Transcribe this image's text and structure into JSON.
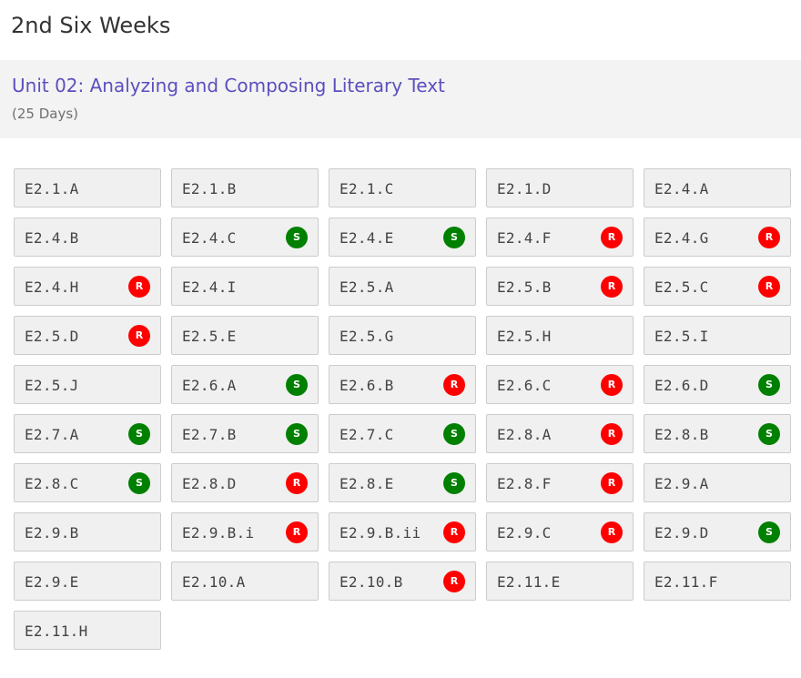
{
  "page": {
    "title": "2nd Six Weeks"
  },
  "unit": {
    "title": "Unit 02: Analyzing and Composing Literary Text",
    "days": "(25 Days)"
  },
  "colors": {
    "supporting": "#008000",
    "readiness": "#ff0000",
    "unit_title": "#5b4fbe"
  },
  "standards": [
    {
      "code": "E2.1.A",
      "badge": ""
    },
    {
      "code": "E2.1.B",
      "badge": ""
    },
    {
      "code": "E2.1.C",
      "badge": ""
    },
    {
      "code": "E2.1.D",
      "badge": ""
    },
    {
      "code": "E2.4.A",
      "badge": ""
    },
    {
      "code": "E2.4.B",
      "badge": ""
    },
    {
      "code": "E2.4.C",
      "badge": "S"
    },
    {
      "code": "E2.4.E",
      "badge": "S"
    },
    {
      "code": "E2.4.F",
      "badge": "R"
    },
    {
      "code": "E2.4.G",
      "badge": "R"
    },
    {
      "code": "E2.4.H",
      "badge": "R"
    },
    {
      "code": "E2.4.I",
      "badge": ""
    },
    {
      "code": "E2.5.A",
      "badge": ""
    },
    {
      "code": "E2.5.B",
      "badge": "R"
    },
    {
      "code": "E2.5.C",
      "badge": "R"
    },
    {
      "code": "E2.5.D",
      "badge": "R"
    },
    {
      "code": "E2.5.E",
      "badge": ""
    },
    {
      "code": "E2.5.G",
      "badge": ""
    },
    {
      "code": "E2.5.H",
      "badge": ""
    },
    {
      "code": "E2.5.I",
      "badge": ""
    },
    {
      "code": "E2.5.J",
      "badge": ""
    },
    {
      "code": "E2.6.A",
      "badge": "S"
    },
    {
      "code": "E2.6.B",
      "badge": "R"
    },
    {
      "code": "E2.6.C",
      "badge": "R"
    },
    {
      "code": "E2.6.D",
      "badge": "S"
    },
    {
      "code": "E2.7.A",
      "badge": "S"
    },
    {
      "code": "E2.7.B",
      "badge": "S"
    },
    {
      "code": "E2.7.C",
      "badge": "S"
    },
    {
      "code": "E2.8.A",
      "badge": "R"
    },
    {
      "code": "E2.8.B",
      "badge": "S"
    },
    {
      "code": "E2.8.C",
      "badge": "S"
    },
    {
      "code": "E2.8.D",
      "badge": "R"
    },
    {
      "code": "E2.8.E",
      "badge": "S"
    },
    {
      "code": "E2.8.F",
      "badge": "R"
    },
    {
      "code": "E2.9.A",
      "badge": ""
    },
    {
      "code": "E2.9.B",
      "badge": ""
    },
    {
      "code": "E2.9.B.i",
      "badge": "R"
    },
    {
      "code": "E2.9.B.ii",
      "badge": "R"
    },
    {
      "code": "E2.9.C",
      "badge": "R"
    },
    {
      "code": "E2.9.D",
      "badge": "S"
    },
    {
      "code": "E2.9.E",
      "badge": ""
    },
    {
      "code": "E2.10.A",
      "badge": ""
    },
    {
      "code": "E2.10.B",
      "badge": "R"
    },
    {
      "code": "E2.11.E",
      "badge": ""
    },
    {
      "code": "E2.11.F",
      "badge": ""
    },
    {
      "code": "E2.11.H",
      "badge": ""
    }
  ]
}
